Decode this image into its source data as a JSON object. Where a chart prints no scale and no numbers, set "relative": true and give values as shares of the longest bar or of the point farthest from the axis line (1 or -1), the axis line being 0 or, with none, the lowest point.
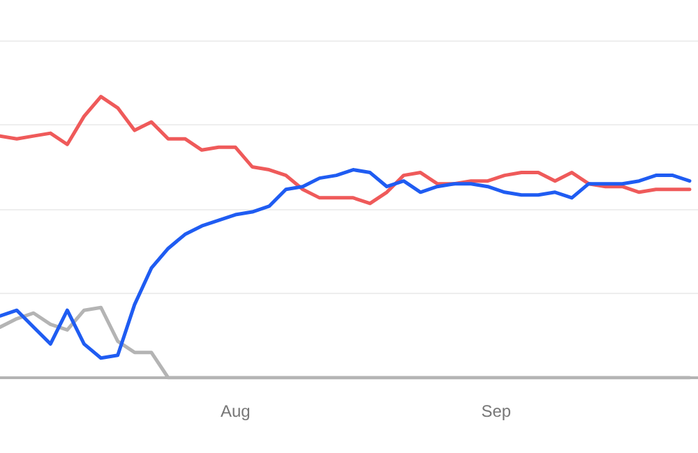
{
  "chart_data": {
    "type": "line",
    "relative": true,
    "grid": "y",
    "marker": "none",
    "line_style": "solid",
    "xlim": [
      "--07-04",
      "--09-25"
    ],
    "xticks": [
      {
        "value": "--08-01",
        "label": "Aug"
      },
      {
        "value": "--09-01",
        "label": "Sep"
      }
    ],
    "x": [
      "--07-04",
      "--07-06",
      "--07-08",
      "--07-10",
      "--07-12",
      "--07-14",
      "--07-16",
      "--07-18",
      "--07-20",
      "--07-22",
      "--07-24",
      "--07-26",
      "--07-28",
      "--07-30",
      "--08-01",
      "--08-03",
      "--08-05",
      "--08-07",
      "--08-09",
      "--08-11",
      "--08-13",
      "--08-15",
      "--08-17",
      "--08-19",
      "--08-21",
      "--08-23",
      "--08-25",
      "--08-27",
      "--08-29",
      "--08-31",
      "--09-02",
      "--09-04",
      "--09-06",
      "--09-08",
      "--09-10",
      "--09-12",
      "--09-14",
      "--09-16",
      "--09-18",
      "--09-20",
      "--09-22",
      "--09-24"
    ],
    "series": [
      {
        "color": "#ef5a5a",
        "values": [
          0.86,
          0.85,
          0.86,
          0.87,
          0.83,
          0.93,
          1,
          0.96,
          0.88,
          0.91,
          0.85,
          0.85,
          0.81,
          0.82,
          0.82,
          0.75,
          0.74,
          0.72,
          0.67,
          0.64,
          0.64,
          0.64,
          0.62,
          0.66,
          0.72,
          0.73,
          0.69,
          0.69,
          0.7,
          0.7,
          0.72,
          0.73,
          0.73,
          0.7,
          0.73,
          0.69,
          0.68,
          0.68,
          0.66,
          0.67,
          0.67,
          0.67
        ]
      },
      {
        "color": "#b4b4b4",
        "values": [
          0.18,
          0.21,
          0.23,
          0.19,
          0.17,
          0.24,
          0.25,
          0.13,
          0.09,
          0.09,
          0,
          0,
          0,
          0,
          0,
          0,
          0,
          0,
          0,
          0,
          0,
          0,
          0,
          0,
          0,
          0,
          0,
          0,
          0,
          0,
          0,
          0,
          0,
          0,
          0,
          0,
          0,
          0,
          0,
          0,
          0,
          0
        ]
      },
      {
        "color": "#1f5cf2",
        "values": [
          0.22,
          0.24,
          0.18,
          0.12,
          0.24,
          0.12,
          0.07,
          0.08,
          0.26,
          0.39,
          0.46,
          0.51,
          0.54,
          0.56,
          0.58,
          0.59,
          0.61,
          0.67,
          0.68,
          0.71,
          0.72,
          0.74,
          0.73,
          0.68,
          0.7,
          0.66,
          0.68,
          0.69,
          0.69,
          0.68,
          0.66,
          0.65,
          0.65,
          0.66,
          0.64,
          0.69,
          0.69,
          0.69,
          0.7,
          0.72,
          0.72,
          0.7
        ]
      }
    ]
  }
}
